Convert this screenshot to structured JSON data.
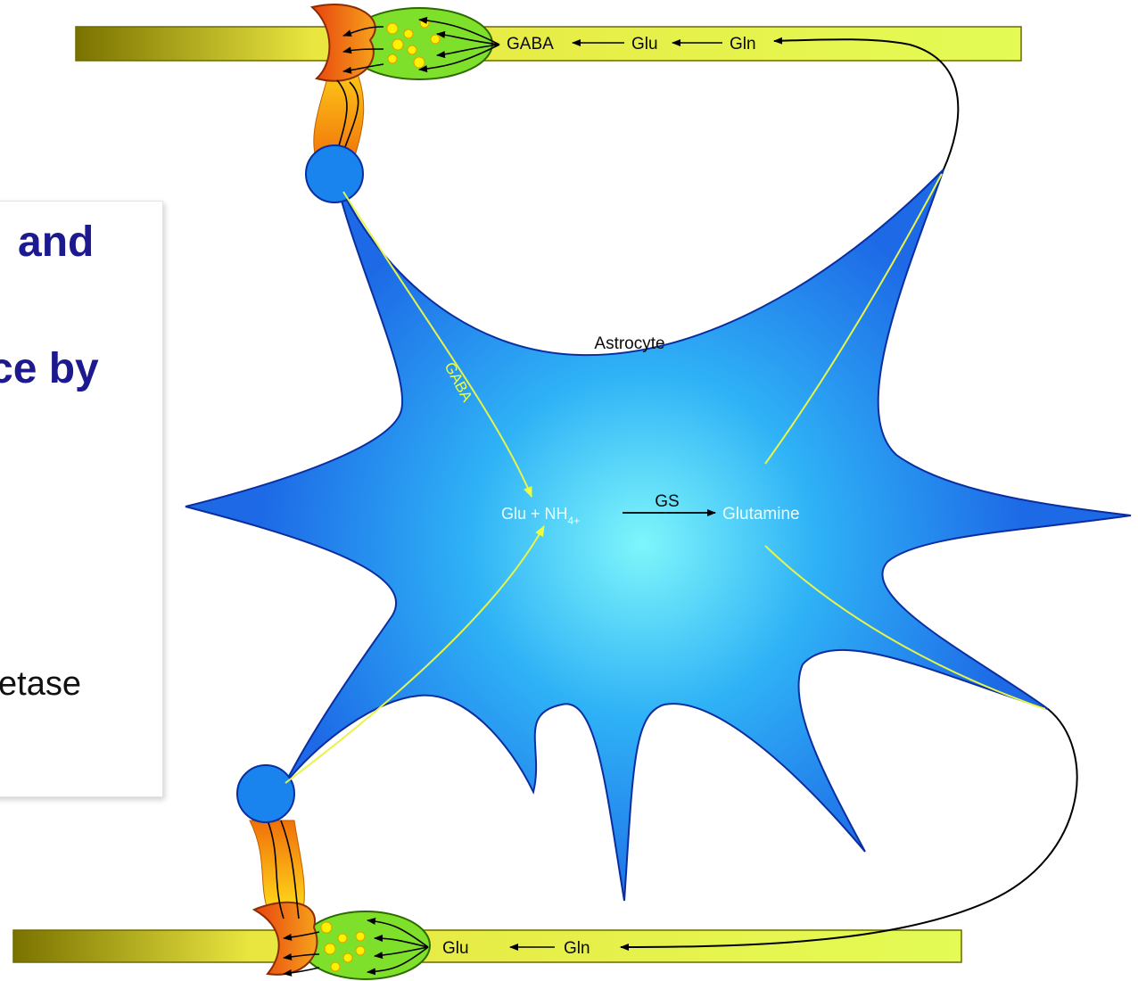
{
  "slide_text": {
    "line1": "and",
    "line2": "ce by",
    "line3": "etase"
  },
  "diagram": {
    "astrocyte_label": "Astrocyte",
    "top_neuron": {
      "gaba": "GABA",
      "glu": "Glu",
      "gln": "Gln"
    },
    "bottom_neuron": {
      "glu": "Glu",
      "gln": "Gln"
    },
    "gaba_path_label": "GABA",
    "reaction": {
      "reactant": "Glu + NH",
      "subscript": "4+",
      "enzyme": "GS",
      "product": "Glutamine"
    }
  },
  "colors": {
    "heading": "#1c1a8e",
    "astrocyte_center": "#7ff6fb",
    "astrocyte_edge": "#1d69e6",
    "yellow_path": "#e6f54a",
    "axon_light": "#e9fb55",
    "axon_dark": "#7a7200",
    "bouton_green": "#7ee02a",
    "vesicle": "#fff200"
  }
}
